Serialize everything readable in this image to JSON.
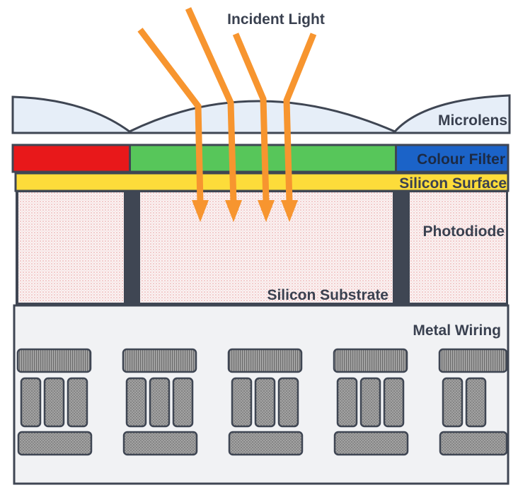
{
  "labels": {
    "incident_light": "Incident Light",
    "microlens": "Microlens",
    "colour_filter": "Colour Filter",
    "silicon_surface": "Silicon Surface",
    "photodiode": "Photodiode",
    "silicon_substrate": "Silicon Substrate",
    "metal_wiring": "Metal Wiring"
  },
  "colors": {
    "light_ray": "#f7952f",
    "filter_red": "#e8181a",
    "filter_green": "#57c65a",
    "filter_blue": "#1b63c8",
    "silicon_surface": "#fddc3a",
    "microlens": "#e6eef8",
    "outline": "#3f4653",
    "wiring_bg": "#f1f2f4"
  }
}
